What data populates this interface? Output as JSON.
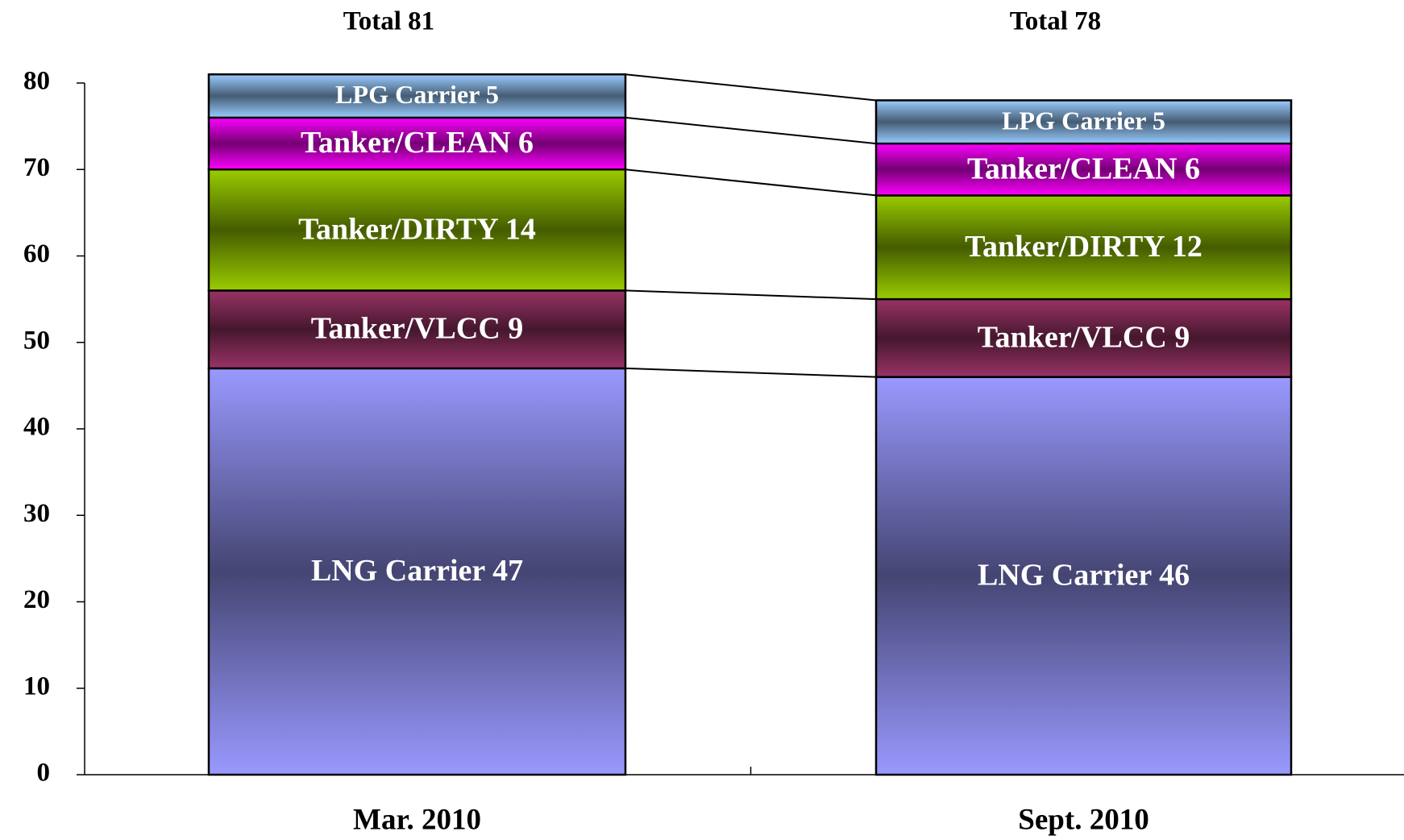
{
  "chart_data": {
    "type": "stacked_bar",
    "categories": [
      "Mar. 2010",
      "Sept. 2010"
    ],
    "annotations": [
      "Total 81",
      "Total 78"
    ],
    "series": [
      {
        "name": "LNG Carrier",
        "color": "#9999ff",
        "values": [
          47,
          46
        ]
      },
      {
        "name": "Tanker/VLCC",
        "color": "#993366",
        "values": [
          9,
          9
        ]
      },
      {
        "name": "Tanker/DIRTY",
        "color": "#99cc00",
        "values": [
          14,
          12
        ]
      },
      {
        "name": "Tanker/CLEAN",
        "color": "#ff00ff",
        "values": [
          6,
          6
        ]
      },
      {
        "name": "LPG Carrier",
        "color": "#99ccff",
        "values": [
          5,
          5
        ]
      }
    ],
    "ylim": [
      0,
      80
    ],
    "yticks": [
      0,
      10,
      20,
      30,
      40,
      50,
      60,
      70,
      80
    ]
  }
}
